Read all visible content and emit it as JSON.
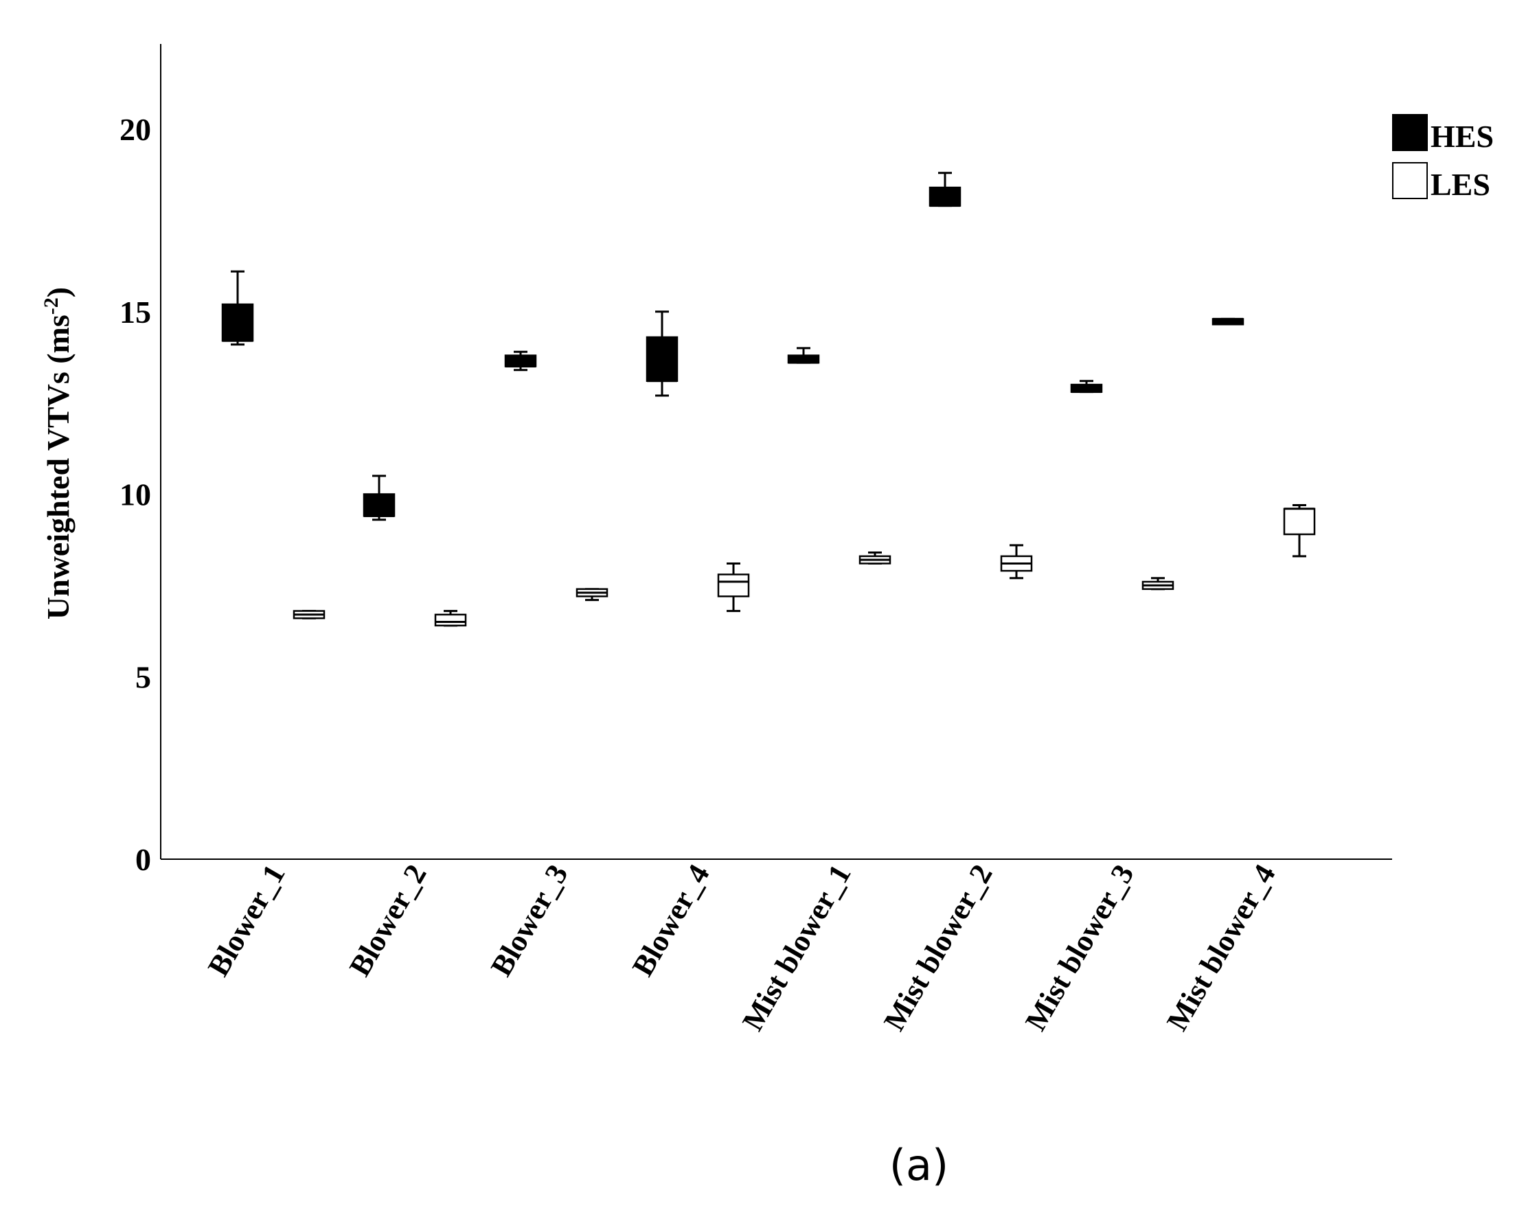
{
  "chart_data": {
    "type": "boxplot",
    "ylabel": "Unweighted VTVs (ms",
    "ylabel_exponent": "-2",
    "ylabel_close": ")",
    "ylim": [
      0,
      22
    ],
    "yticks": [
      0,
      5,
      10,
      15,
      20
    ],
    "categories": [
      "Blower_1",
      "Blower_2",
      "Blower_3",
      "Blower_4",
      "Mist blower_1",
      "Mist blower_2",
      "Mist blower_3",
      "Mist blower_4"
    ],
    "legend_position": "top-right",
    "series": [
      {
        "name": "HES",
        "fill": "#000000",
        "boxes": [
          {
            "whisker_low": 14.1,
            "q1": 14.2,
            "median": 14.2,
            "q3": 15.2,
            "whisker_high": 16.1
          },
          {
            "whisker_low": 9.3,
            "q1": 9.4,
            "median": 9.4,
            "q3": 10.0,
            "whisker_high": 10.5
          },
          {
            "whisker_low": 13.4,
            "q1": 13.5,
            "median": 13.5,
            "q3": 13.8,
            "whisker_high": 13.9
          },
          {
            "whisker_low": 12.7,
            "q1": 13.1,
            "median": 13.1,
            "q3": 14.3,
            "whisker_high": 15.0
          },
          {
            "whisker_low": 13.6,
            "q1": 13.6,
            "median": 13.6,
            "q3": 13.8,
            "whisker_high": 14.0
          },
          {
            "whisker_low": 17.9,
            "q1": 17.9,
            "median": 17.9,
            "q3": 18.4,
            "whisker_high": 18.8
          },
          {
            "whisker_low": 12.8,
            "q1": 12.8,
            "median": 12.8,
            "q3": 13.0,
            "whisker_high": 13.1
          },
          {
            "whisker_low": 14.7,
            "q1": 14.7,
            "median": 14.8,
            "q3": 14.8,
            "whisker_high": 14.8
          }
        ]
      },
      {
        "name": "LES",
        "fill": "#ffffff",
        "boxes": [
          {
            "whisker_low": 6.6,
            "q1": 6.6,
            "median": 6.7,
            "q3": 6.8,
            "whisker_high": 6.8
          },
          {
            "whisker_low": 6.4,
            "q1": 6.4,
            "median": 6.5,
            "q3": 6.7,
            "whisker_high": 6.8
          },
          {
            "whisker_low": 7.1,
            "q1": 7.2,
            "median": 7.3,
            "q3": 7.4,
            "whisker_high": 7.4
          },
          {
            "whisker_low": 6.8,
            "q1": 7.2,
            "median": 7.6,
            "q3": 7.8,
            "whisker_high": 8.1
          },
          {
            "whisker_low": 8.1,
            "q1": 8.1,
            "median": 8.2,
            "q3": 8.3,
            "whisker_high": 8.4
          },
          {
            "whisker_low": 7.7,
            "q1": 7.9,
            "median": 8.1,
            "q3": 8.3,
            "whisker_high": 8.6
          },
          {
            "whisker_low": 7.4,
            "q1": 7.4,
            "median": 7.5,
            "q3": 7.6,
            "whisker_high": 7.7
          },
          {
            "whisker_low": 8.3,
            "q1": 8.9,
            "median": 9.6,
            "q3": 9.6,
            "whisker_high": 9.7
          }
        ]
      }
    ]
  },
  "panel_label": "(a)"
}
